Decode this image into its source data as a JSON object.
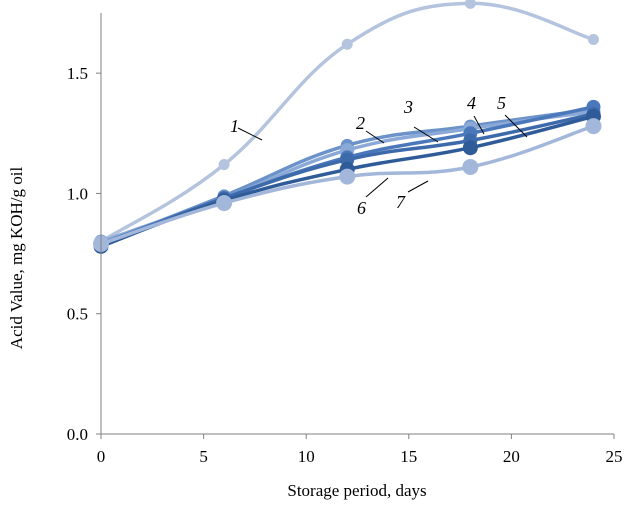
{
  "chart_data": {
    "type": "line",
    "xlabel": "Storage period, days",
    "ylabel": "Acid Value,  mg KOH/g oil",
    "xlim": [
      0,
      25
    ],
    "ylim": [
      0.0,
      1.75
    ],
    "x_ticks": [
      "0",
      "5",
      "10",
      "15",
      "20",
      "25"
    ],
    "y_ticks": [
      "0.0",
      "0.5",
      "1.0",
      "1.5"
    ],
    "grid": false,
    "x": [
      0,
      6,
      12,
      18,
      24
    ],
    "series": [
      {
        "name": "1",
        "color": "#b4c3de",
        "values": [
          0.8,
          1.12,
          1.62,
          1.79,
          1.64
        ]
      },
      {
        "name": "2",
        "color": "#6b92c9",
        "values": [
          0.79,
          0.99,
          1.2,
          1.28,
          1.35
        ]
      },
      {
        "name": "3",
        "color": "#8aa9d6",
        "values": [
          0.8,
          0.98,
          1.18,
          1.27,
          1.34
        ]
      },
      {
        "name": "4",
        "color": "#4a78ba",
        "values": [
          0.79,
          0.98,
          1.15,
          1.25,
          1.36
        ]
      },
      {
        "name": "5",
        "color": "#3d6aab",
        "values": [
          0.78,
          0.98,
          1.14,
          1.22,
          1.33
        ]
      },
      {
        "name": "6",
        "color": "#2f5b99",
        "values": [
          0.78,
          0.97,
          1.1,
          1.19,
          1.32
        ]
      },
      {
        "name": "7",
        "color": "#a3b7db",
        "values": [
          0.79,
          0.96,
          1.07,
          1.11,
          1.28
        ]
      }
    ]
  }
}
